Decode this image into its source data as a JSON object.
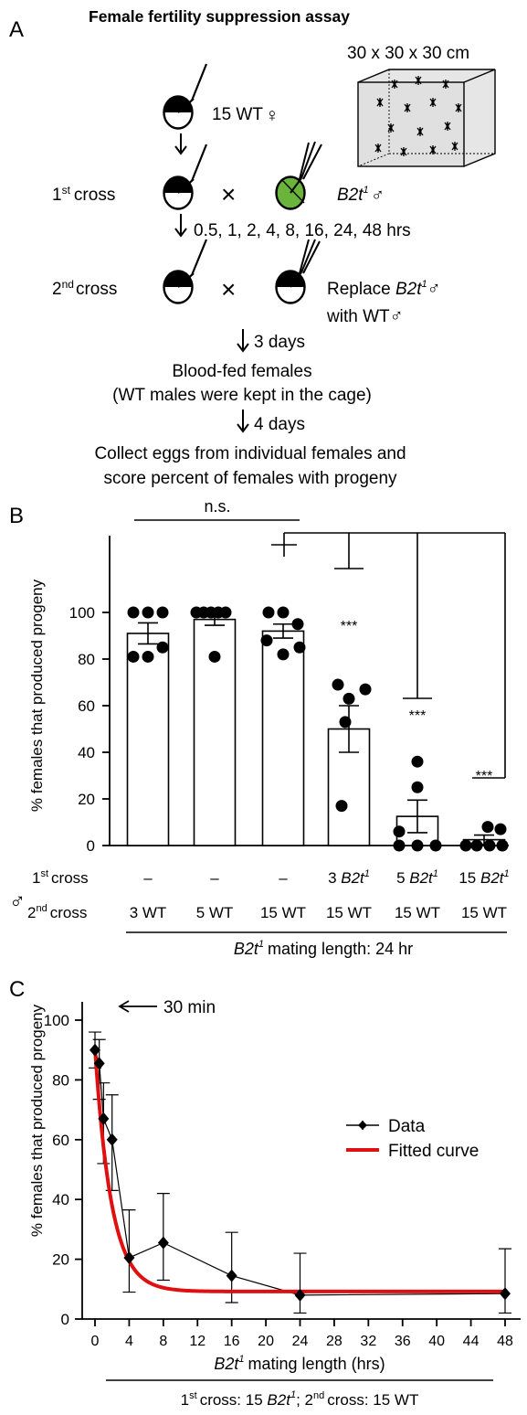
{
  "panelA": {
    "letter": "A",
    "title": "Female fertility suppression assay",
    "cage_label": "30 x 30 x 30 cm",
    "wt_females": "15 WT",
    "first_cross": "1",
    "first_cross_sup": "st",
    "cross_word": "cross",
    "second_cross": "2",
    "second_cross_sup": "nd",
    "b2t_male": "B2t",
    "b2t_sup": "1",
    "times": "0.5, 1, 2, 4, 8, 16, 24, 48 hrs",
    "replace_line1": "Replace",
    "replace_line2": "with WT",
    "three_days": "3 days",
    "blood_fed": "Blood-fed females",
    "wt_kept": "(WT males were kept in the cage)",
    "four_days": "4 days",
    "collect_line1": "Collect eggs from individual females and",
    "collect_line2": "score percent of females with progeny",
    "female_symbol": "♀",
    "male_symbol": "♂",
    "times_symbol": "×"
  },
  "panelB": {
    "letter": "B",
    "ns": "n.s.",
    "stars": "***",
    "ylabel": "% females that produced progeny",
    "yticks": [
      "0",
      "20",
      "40",
      "60",
      "80",
      "100"
    ],
    "row1_label": "cross",
    "row2_label": "cross",
    "dash": "–",
    "b2t_text": "B2t",
    "b2t_sup": "1",
    "mating_length_suffix": "mating length: 24 hr"
  },
  "panelC": {
    "letter": "C",
    "ylabel": "% females that produced progeny",
    "xlabel_suffix": "mating length  (hrs)",
    "annotation": "30 min",
    "legend_data": "Data",
    "legend_fit": "Fitted curve",
    "footer_prefix": "cross: 15",
    "footer_mid": "; 2",
    "footer_suffix": "cross: 15 WT",
    "yticks": [
      "0",
      "20",
      "40",
      "60",
      "80",
      "100"
    ],
    "xticks": [
      "0",
      "4",
      "8",
      "12",
      "16",
      "20",
      "24",
      "28",
      "32",
      "36",
      "40",
      "44",
      "48"
    ]
  },
  "colors": {
    "green": "#6ab43c",
    "red": "#e01010",
    "black": "#000000"
  },
  "chart_data": [
    {
      "type": "bar",
      "title": "",
      "ylabel": "% females that produced progeny",
      "ylim": [
        0,
        100
      ],
      "categories": [
        "3 WT",
        "5 WT",
        "15 WT",
        "3 B2t1 / 15 WT",
        "5 B2t1 / 15 WT",
        "15 B2t1 / 15 WT"
      ],
      "first_cross": [
        "–",
        "–",
        "–",
        "3",
        "5",
        "15"
      ],
      "second_cross": [
        "3 WT",
        "5 WT",
        "15 WT",
        "15 WT",
        "15 WT",
        "15 WT"
      ],
      "values": [
        91,
        97,
        92,
        50,
        12.5,
        2.5
      ],
      "errors": [
        4.5,
        2.5,
        3,
        10,
        7,
        2
      ],
      "points": [
        [
          100,
          100,
          100,
          81,
          81,
          85
        ],
        [
          100,
          100,
          100,
          100,
          100,
          81
        ],
        [
          100,
          100,
          95,
          88,
          85,
          82
        ],
        [
          69,
          67,
          63,
          53,
          17
        ],
        [
          36,
          25,
          6,
          0,
          0,
          0
        ],
        [
          8,
          7,
          0,
          0,
          0,
          0
        ]
      ],
      "significance": [
        "",
        "",
        "",
        "***",
        "***",
        "***"
      ]
    },
    {
      "type": "line",
      "title": "",
      "xlabel": "B2t1 mating length (hrs)",
      "ylabel": "% females that produced progeny",
      "xlim": [
        0,
        48
      ],
      "ylim": [
        0,
        100
      ],
      "x": [
        0,
        0.5,
        1,
        2,
        4,
        8,
        16,
        24,
        48
      ],
      "series": [
        {
          "name": "Data",
          "values": [
            90,
            85.5,
            67,
            60,
            20.5,
            25.5,
            14.5,
            8,
            8.5
          ],
          "err_low": [
            6,
            12,
            15,
            17,
            11.5,
            12.5,
            9,
            6,
            6.5
          ],
          "err_high": [
            6,
            8,
            12,
            15,
            16,
            16.5,
            14.5,
            14,
            15
          ]
        },
        {
          "name": "Fitted curve",
          "plateau": 9.2,
          "y0": 90.5,
          "k": 0.52
        }
      ]
    }
  ]
}
